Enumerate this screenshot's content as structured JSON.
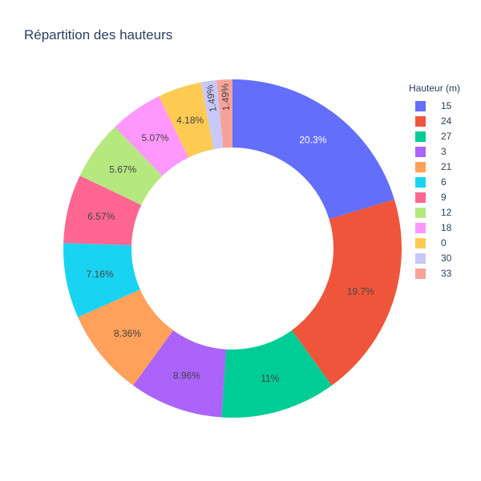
{
  "chart_data": {
    "type": "pie",
    "title": "Répartition des hauteurs",
    "hole": true,
    "legend_title": "Hauteur (m)",
    "legend_position": "right",
    "categories": [
      "15",
      "24",
      "27",
      "3",
      "21",
      "6",
      "9",
      "12",
      "18",
      "0",
      "30",
      "33"
    ],
    "values": [
      20.3,
      19.7,
      11,
      8.96,
      8.36,
      7.16,
      6.57,
      5.67,
      5.07,
      4.18,
      1.49,
      1.49
    ],
    "value_labels": [
      "20.3%",
      "19.7%",
      "11%",
      "8.96%",
      "8.36%",
      "7.16%",
      "6.57%",
      "5.67%",
      "5.07%",
      "4.18%",
      "1.49%",
      "1.49%"
    ],
    "colors": [
      "#636efa",
      "#ef553b",
      "#00cc96",
      "#ab63fa",
      "#ffa15a",
      "#19d3f3",
      "#ff6692",
      "#b6e880",
      "#ff97ff",
      "#fecb52",
      "#c8c8fa",
      "#f7a399"
    ],
    "label_colors": [
      "#ffffff",
      "#444444",
      "#444444",
      "#444444",
      "#444444",
      "#444444",
      "#444444",
      "#444444",
      "#444444",
      "#444444",
      "#444444",
      "#444444"
    ]
  }
}
